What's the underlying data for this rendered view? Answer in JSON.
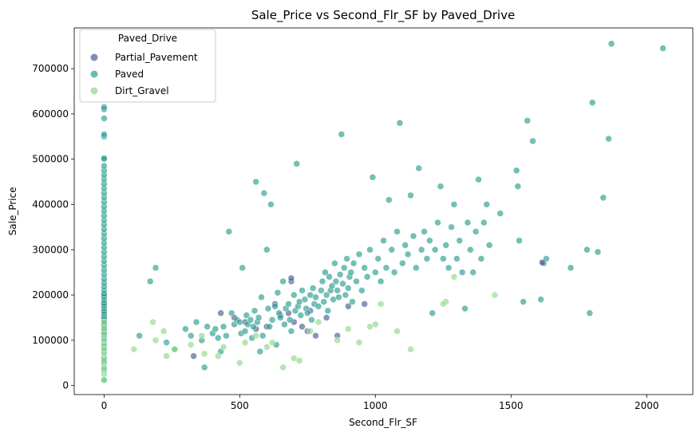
{
  "chart_data": {
    "type": "scatter",
    "title": "Sale_Price vs Second_Flr_SF by Paved_Drive",
    "xlabel": "Second_Flr_SF",
    "ylabel": "Sale_Price",
    "xlim": [
      -110,
      2170
    ],
    "ylim": [
      -20000,
      790000
    ],
    "x_ticks": [
      0,
      500,
      1000,
      1500,
      2000
    ],
    "y_ticks": [
      0,
      100000,
      200000,
      300000,
      400000,
      500000,
      600000,
      700000
    ],
    "grid": false,
    "legend": {
      "title": "Paved_Drive",
      "placement": "top-left",
      "entries": [
        "Partial_Pavement",
        "Paved",
        "Dirt_Gravel"
      ]
    },
    "series": [
      {
        "name": "Partial_Pavement",
        "color": "#4a5a96",
        "points": [
          [
            0,
            120000
          ],
          [
            0,
            135000
          ],
          [
            0,
            150000
          ],
          [
            0,
            165000
          ],
          [
            0,
            180000
          ],
          [
            0,
            200000
          ],
          [
            330,
            65000
          ],
          [
            430,
            160000
          ],
          [
            480,
            150000
          ],
          [
            520,
            140000
          ],
          [
            560,
            125000
          ],
          [
            600,
            130000
          ],
          [
            630,
            180000
          ],
          [
            650,
            155000
          ],
          [
            680,
            160000
          ],
          [
            690,
            230000
          ],
          [
            700,
            140000
          ],
          [
            730,
            130000
          ],
          [
            750,
            120000
          ],
          [
            760,
            165000
          ],
          [
            780,
            110000
          ],
          [
            820,
            150000
          ],
          [
            860,
            110000
          ],
          [
            900,
            175000
          ],
          [
            960,
            180000
          ],
          [
            1620,
            270000
          ],
          [
            1615,
            272000
          ],
          [
            690,
            237000
          ]
        ]
      },
      {
        "name": "Paved",
        "color": "#2a9d8f",
        "points": [
          [
            0,
            12000
          ],
          [
            0,
            35000
          ],
          [
            0,
            50000
          ],
          [
            0,
            60000
          ],
          [
            0,
            75000
          ],
          [
            0,
            85000
          ],
          [
            0,
            95000
          ],
          [
            0,
            105000
          ],
          [
            0,
            112000
          ],
          [
            0,
            118000
          ],
          [
            0,
            125000
          ],
          [
            0,
            132000
          ],
          [
            0,
            138000
          ],
          [
            0,
            145000
          ],
          [
            0,
            152000
          ],
          [
            0,
            158000
          ],
          [
            0,
            163000
          ],
          [
            0,
            170000
          ],
          [
            0,
            176000
          ],
          [
            0,
            182000
          ],
          [
            0,
            188000
          ],
          [
            0,
            195000
          ],
          [
            0,
            202000
          ],
          [
            0,
            210000
          ],
          [
            0,
            218000
          ],
          [
            0,
            226000
          ],
          [
            0,
            235000
          ],
          [
            0,
            245000
          ],
          [
            0,
            255000
          ],
          [
            0,
            265000
          ],
          [
            0,
            275000
          ],
          [
            0,
            285000
          ],
          [
            0,
            295000
          ],
          [
            0,
            305000
          ],
          [
            0,
            315000
          ],
          [
            0,
            325000
          ],
          [
            0,
            335000
          ],
          [
            0,
            345000
          ],
          [
            0,
            355000
          ],
          [
            0,
            365000
          ],
          [
            0,
            375000
          ],
          [
            0,
            385000
          ],
          [
            0,
            395000
          ],
          [
            0,
            405000
          ],
          [
            0,
            415000
          ],
          [
            0,
            425000
          ],
          [
            0,
            435000
          ],
          [
            0,
            445000
          ],
          [
            0,
            455000
          ],
          [
            0,
            465000
          ],
          [
            0,
            475000
          ],
          [
            0,
            485000
          ],
          [
            0,
            500000
          ],
          [
            0,
            502000
          ],
          [
            0,
            550000
          ],
          [
            0,
            555000
          ],
          [
            0,
            590000
          ],
          [
            0,
            610000
          ],
          [
            0,
            615000
          ],
          [
            130,
            110000
          ],
          [
            170,
            230000
          ],
          [
            190,
            260000
          ],
          [
            230,
            95000
          ],
          [
            260,
            80000
          ],
          [
            300,
            125000
          ],
          [
            320,
            110000
          ],
          [
            340,
            140000
          ],
          [
            360,
            100000
          ],
          [
            370,
            40000
          ],
          [
            380,
            130000
          ],
          [
            400,
            115000
          ],
          [
            410,
            125000
          ],
          [
            420,
            105000
          ],
          [
            430,
            75000
          ],
          [
            440,
            130000
          ],
          [
            450,
            110000
          ],
          [
            460,
            340000
          ],
          [
            470,
            160000
          ],
          [
            480,
            135000
          ],
          [
            490,
            145000
          ],
          [
            500,
            140000
          ],
          [
            505,
            115000
          ],
          [
            510,
            260000
          ],
          [
            520,
            120000
          ],
          [
            525,
            155000
          ],
          [
            530,
            135000
          ],
          [
            540,
            145000
          ],
          [
            545,
            105000
          ],
          [
            550,
            130000
          ],
          [
            555,
            165000
          ],
          [
            560,
            450000
          ],
          [
            565,
            140000
          ],
          [
            570,
            150000
          ],
          [
            575,
            75000
          ],
          [
            580,
            195000
          ],
          [
            585,
            110000
          ],
          [
            590,
            425000
          ],
          [
            600,
            300000
          ],
          [
            605,
            170000
          ],
          [
            610,
            130000
          ],
          [
            615,
            400000
          ],
          [
            620,
            145000
          ],
          [
            630,
            175000
          ],
          [
            635,
            90000
          ],
          [
            640,
            205000
          ],
          [
            645,
            160000
          ],
          [
            650,
            150000
          ],
          [
            660,
            230000
          ],
          [
            665,
            135000
          ],
          [
            670,
            170000
          ],
          [
            680,
            180000
          ],
          [
            685,
            145000
          ],
          [
            690,
            120000
          ],
          [
            700,
            200000
          ],
          [
            705,
            165000
          ],
          [
            710,
            490000
          ],
          [
            715,
            175000
          ],
          [
            720,
            185000
          ],
          [
            725,
            155000
          ],
          [
            730,
            210000
          ],
          [
            740,
            190000
          ],
          [
            745,
            170000
          ],
          [
            750,
            160000
          ],
          [
            760,
            200000
          ],
          [
            765,
            145000
          ],
          [
            770,
            215000
          ],
          [
            775,
            180000
          ],
          [
            780,
            195000
          ],
          [
            790,
            175000
          ],
          [
            800,
            210000
          ],
          [
            805,
            230000
          ],
          [
            810,
            185000
          ],
          [
            815,
            250000
          ],
          [
            820,
            200000
          ],
          [
            825,
            165000
          ],
          [
            830,
            240000
          ],
          [
            835,
            210000
          ],
          [
            840,
            220000
          ],
          [
            845,
            190000
          ],
          [
            850,
            270000
          ],
          [
            855,
            230000
          ],
          [
            860,
            210000
          ],
          [
            865,
            195000
          ],
          [
            870,
            245000
          ],
          [
            875,
            555000
          ],
          [
            880,
            225000
          ],
          [
            885,
            260000
          ],
          [
            890,
            200000
          ],
          [
            895,
            280000
          ],
          [
            900,
            215000
          ],
          [
            905,
            240000
          ],
          [
            910,
            250000
          ],
          [
            915,
            185000
          ],
          [
            920,
            270000
          ],
          [
            930,
            230000
          ],
          [
            940,
            290000
          ],
          [
            950,
            210000
          ],
          [
            960,
            260000
          ],
          [
            970,
            240000
          ],
          [
            980,
            300000
          ],
          [
            990,
            460000
          ],
          [
            1000,
            250000
          ],
          [
            1010,
            280000
          ],
          [
            1020,
            230000
          ],
          [
            1030,
            320000
          ],
          [
            1040,
            260000
          ],
          [
            1050,
            410000
          ],
          [
            1060,
            300000
          ],
          [
            1070,
            250000
          ],
          [
            1080,
            340000
          ],
          [
            1090,
            580000
          ],
          [
            1100,
            270000
          ],
          [
            1110,
            310000
          ],
          [
            1120,
            290000
          ],
          [
            1130,
            420000
          ],
          [
            1140,
            330000
          ],
          [
            1150,
            260000
          ],
          [
            1160,
            480000
          ],
          [
            1170,
            300000
          ],
          [
            1180,
            340000
          ],
          [
            1190,
            280000
          ],
          [
            1200,
            320000
          ],
          [
            1210,
            160000
          ],
          [
            1220,
            300000
          ],
          [
            1230,
            360000
          ],
          [
            1240,
            440000
          ],
          [
            1250,
            280000
          ],
          [
            1260,
            310000
          ],
          [
            1270,
            260000
          ],
          [
            1280,
            350000
          ],
          [
            1290,
            400000
          ],
          [
            1300,
            280000
          ],
          [
            1310,
            320000
          ],
          [
            1320,
            250000
          ],
          [
            1330,
            170000
          ],
          [
            1340,
            360000
          ],
          [
            1350,
            300000
          ],
          [
            1360,
            250000
          ],
          [
            1370,
            340000
          ],
          [
            1380,
            455000
          ],
          [
            1390,
            280000
          ],
          [
            1400,
            360000
          ],
          [
            1410,
            400000
          ],
          [
            1420,
            310000
          ],
          [
            1460,
            380000
          ],
          [
            1520,
            475000
          ],
          [
            1525,
            440000
          ],
          [
            1530,
            320000
          ],
          [
            1545,
            185000
          ],
          [
            1560,
            585000
          ],
          [
            1580,
            540000
          ],
          [
            1610,
            190000
          ],
          [
            1630,
            280000
          ],
          [
            1720,
            260000
          ],
          [
            1780,
            300000
          ],
          [
            1790,
            160000
          ],
          [
            1800,
            625000
          ],
          [
            1820,
            295000
          ],
          [
            1840,
            415000
          ],
          [
            1860,
            545000
          ],
          [
            1870,
            755000
          ],
          [
            2060,
            745000
          ]
        ]
      },
      {
        "name": "Dirt_Gravel",
        "color": "#8fd88a",
        "points": [
          [
            0,
            12000
          ],
          [
            0,
            25000
          ],
          [
            0,
            40000
          ],
          [
            0,
            55000
          ],
          [
            0,
            70000
          ],
          [
            0,
            80000
          ],
          [
            0,
            90000
          ],
          [
            0,
            100000
          ],
          [
            0,
            115000
          ],
          [
            0,
            125000
          ],
          [
            0,
            140000
          ],
          [
            110,
            80000
          ],
          [
            180,
            140000
          ],
          [
            190,
            100000
          ],
          [
            220,
            120000
          ],
          [
            230,
            65000
          ],
          [
            260,
            80000
          ],
          [
            320,
            90000
          ],
          [
            360,
            110000
          ],
          [
            370,
            70000
          ],
          [
            420,
            65000
          ],
          [
            440,
            85000
          ],
          [
            500,
            50000
          ],
          [
            520,
            95000
          ],
          [
            560,
            110000
          ],
          [
            600,
            85000
          ],
          [
            620,
            95000
          ],
          [
            660,
            40000
          ],
          [
            700,
            60000
          ],
          [
            720,
            55000
          ],
          [
            760,
            120000
          ],
          [
            790,
            140000
          ],
          [
            860,
            100000
          ],
          [
            900,
            125000
          ],
          [
            940,
            95000
          ],
          [
            980,
            130000
          ],
          [
            1000,
            135000
          ],
          [
            1020,
            180000
          ],
          [
            1080,
            120000
          ],
          [
            1130,
            80000
          ],
          [
            1260,
            185000
          ],
          [
            1290,
            240000
          ],
          [
            1440,
            200000
          ],
          [
            1250,
            180000
          ]
        ]
      }
    ]
  }
}
